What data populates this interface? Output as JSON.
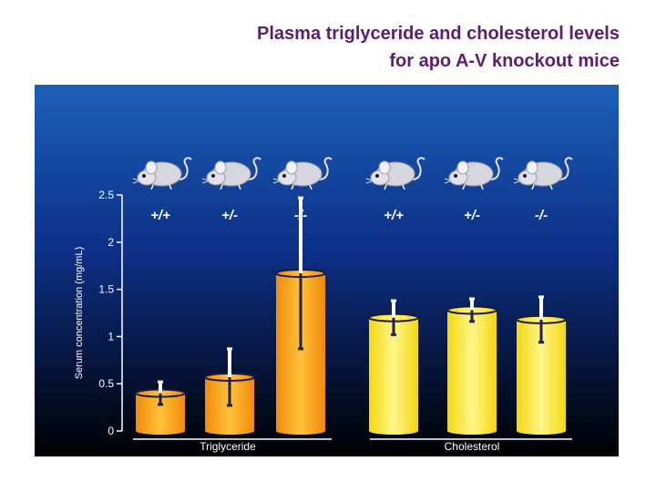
{
  "title": {
    "line1": "Plasma triglyceride and cholesterol levels",
    "line2": "for apo A-V knockout mice"
  },
  "chart_data": {
    "type": "bar",
    "ylabel": "Serum concentration (mg/mL)",
    "ylim": [
      0,
      2.5
    ],
    "yticks": [
      "0",
      "0.5",
      "1",
      "1.5",
      "2",
      "2.5"
    ],
    "ytick_values": [
      0,
      0.5,
      1,
      1.5,
      2,
      2.5
    ],
    "groups": [
      {
        "name": "Triglyceride",
        "color": "#f5a10f",
        "bars": [
          {
            "genotype": "+/+",
            "value": 0.4,
            "err": 0.12
          },
          {
            "genotype": "+/-",
            "value": 0.57,
            "err": 0.3
          },
          {
            "genotype": "-/-",
            "value": 1.67,
            "err": 0.8
          }
        ]
      },
      {
        "name": "Cholesterol",
        "color": "#f4e51c",
        "bars": [
          {
            "genotype": "+/+",
            "value": 1.2,
            "err": 0.18
          },
          {
            "genotype": "+/-",
            "value": 1.28,
            "err": 0.12
          },
          {
            "genotype": "-/-",
            "value": 1.18,
            "err": 0.24
          }
        ]
      }
    ]
  },
  "icons": {
    "mouse": "mouse-icon"
  }
}
